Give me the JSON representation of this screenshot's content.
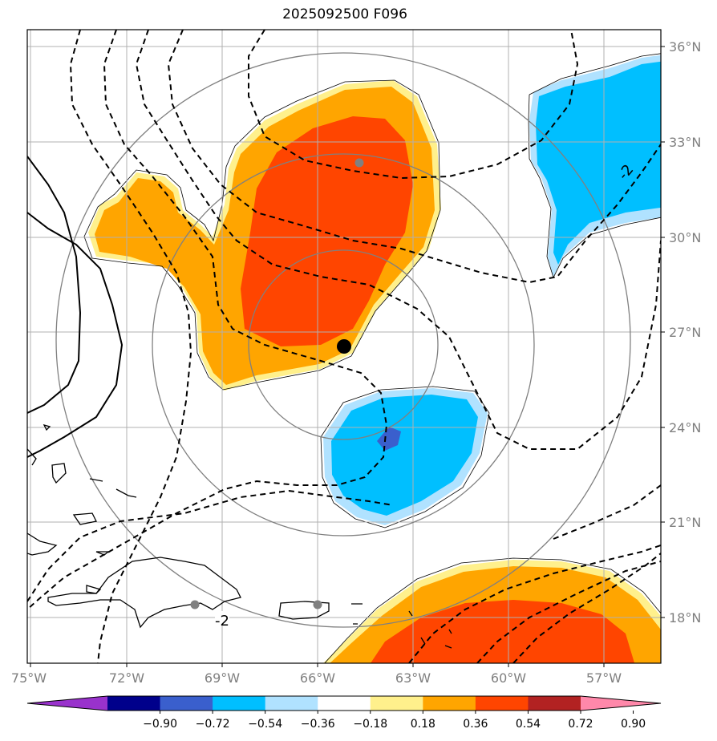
{
  "title": "2025092500 F096",
  "map": {
    "projection": "lat-lon",
    "lon_range": [
      -75.1,
      -56.2
    ],
    "lat_range": [
      16.6,
      36.5
    ],
    "grid": true,
    "lon_ticks": [
      {
        "value": -75,
        "label": "75°W"
      },
      {
        "value": -72,
        "label": "72°W"
      },
      {
        "value": -69,
        "label": "69°W"
      },
      {
        "value": -66,
        "label": "66°W"
      },
      {
        "value": -63,
        "label": "63°W"
      },
      {
        "value": -60,
        "label": "60°W"
      },
      {
        "value": -57,
        "label": "57°W"
      }
    ],
    "lat_ticks": [
      {
        "value": 36,
        "label": "36°N"
      },
      {
        "value": 33,
        "label": "33°N"
      },
      {
        "value": 30,
        "label": "30°N"
      },
      {
        "value": 27,
        "label": "27°N"
      },
      {
        "value": 24,
        "label": "24°N"
      },
      {
        "value": 21,
        "label": "21°N"
      },
      {
        "value": 18,
        "label": "18°N"
      }
    ],
    "storm_center": {
      "lon": -65.0,
      "lat": 26.5
    },
    "points": [
      {
        "lon": -64.7,
        "lat": 32.3
      },
      {
        "lon": -69.9,
        "lat": 18.4
      },
      {
        "lon": -66.0,
        "lat": 18.4
      }
    ],
    "range_rings_center": {
      "lon": -64.8,
      "lat": 26.6
    },
    "range_rings_deg": [
      3,
      6,
      9
    ],
    "contour_labels": [
      "-2",
      "-2"
    ]
  },
  "colorbar": {
    "colors": [
      "#9932cc",
      "#00008b",
      "#3a5fcd",
      "#00bfff",
      "#b0e2ff",
      "#ffffff",
      "#fff08c",
      "#ffa500",
      "#ff4500",
      "#b22222",
      "#ff88aa"
    ],
    "ticks": [
      "−0.90",
      "−0.72",
      "−0.54",
      "−0.36",
      "−0.18",
      "0.18",
      "0.36",
      "0.54",
      "0.72",
      "0.90"
    ]
  }
}
